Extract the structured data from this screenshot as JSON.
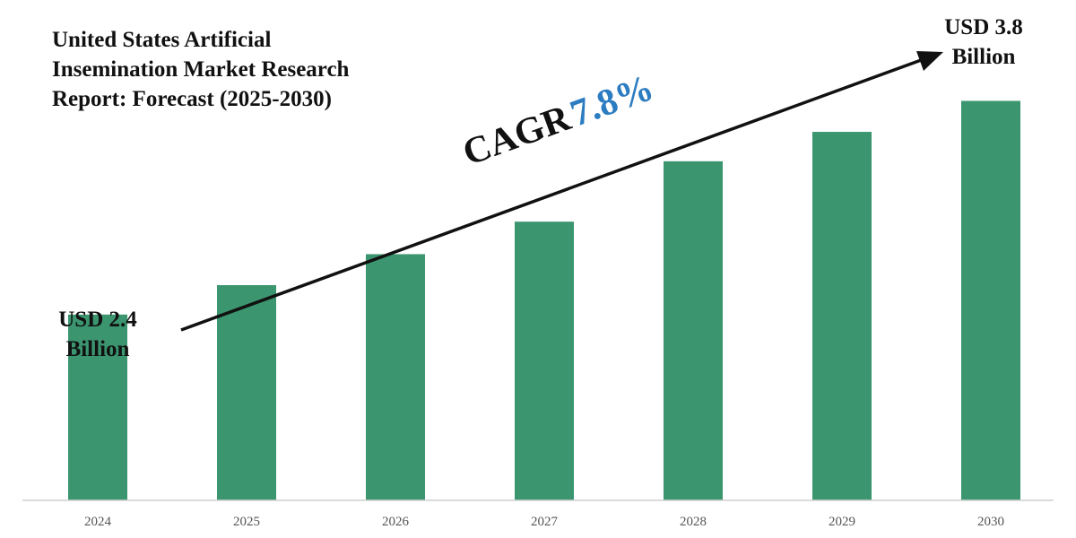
{
  "title_lines": [
    "United States Artificial",
    "Insemination Market Research",
    "Report: Forecast (2025-2030)"
  ],
  "callouts": {
    "start": [
      "USD 2.4",
      "Billion"
    ],
    "end": [
      "USD 3.8",
      "Billion"
    ]
  },
  "cagr": {
    "label": "CAGR",
    "value": "7.8%"
  },
  "chart_data": {
    "type": "bar",
    "title": "United States Artificial Insemination Market Research Report: Forecast (2025-2030)",
    "xlabel": "",
    "ylabel": "",
    "categories": [
      "2024",
      "2025",
      "2026",
      "2027",
      "2028",
      "2029",
      "2030"
    ],
    "values": [
      2.4,
      2.59,
      2.79,
      3.0,
      3.39,
      3.58,
      3.78
    ],
    "ylim": [
      1.2,
      4.2
    ],
    "grid": false,
    "legend": "none",
    "bar_color": "#3b9670",
    "annotations": [
      "USD 2.4 Billion",
      "USD 3.8 Billion",
      "CAGR 7.8%"
    ]
  }
}
